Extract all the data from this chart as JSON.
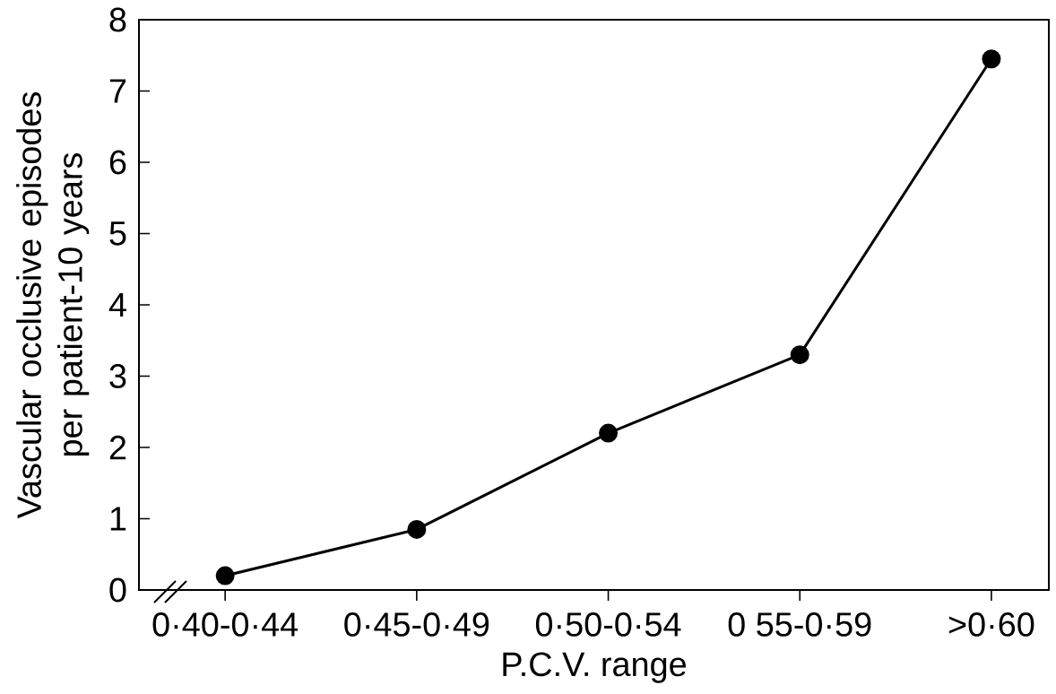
{
  "chart_data": {
    "type": "line",
    "xlabel": "P.C.V. range",
    "ylabel": "Vascular occlusive episodes per patient-10 years",
    "categories": [
      "0·40-0·44",
      "0·45-0·49",
      "0·50-0·54",
      "0 55-0·59",
      ">0·60"
    ],
    "values": [
      0.2,
      0.85,
      2.2,
      3.3,
      7.45
    ],
    "color": "#000000",
    "marker": "circle",
    "line_style": "solid",
    "ylim": [
      0,
      8
    ],
    "yticks": [
      0,
      1,
      2,
      3,
      4,
      5,
      6,
      7,
      8
    ]
  }
}
